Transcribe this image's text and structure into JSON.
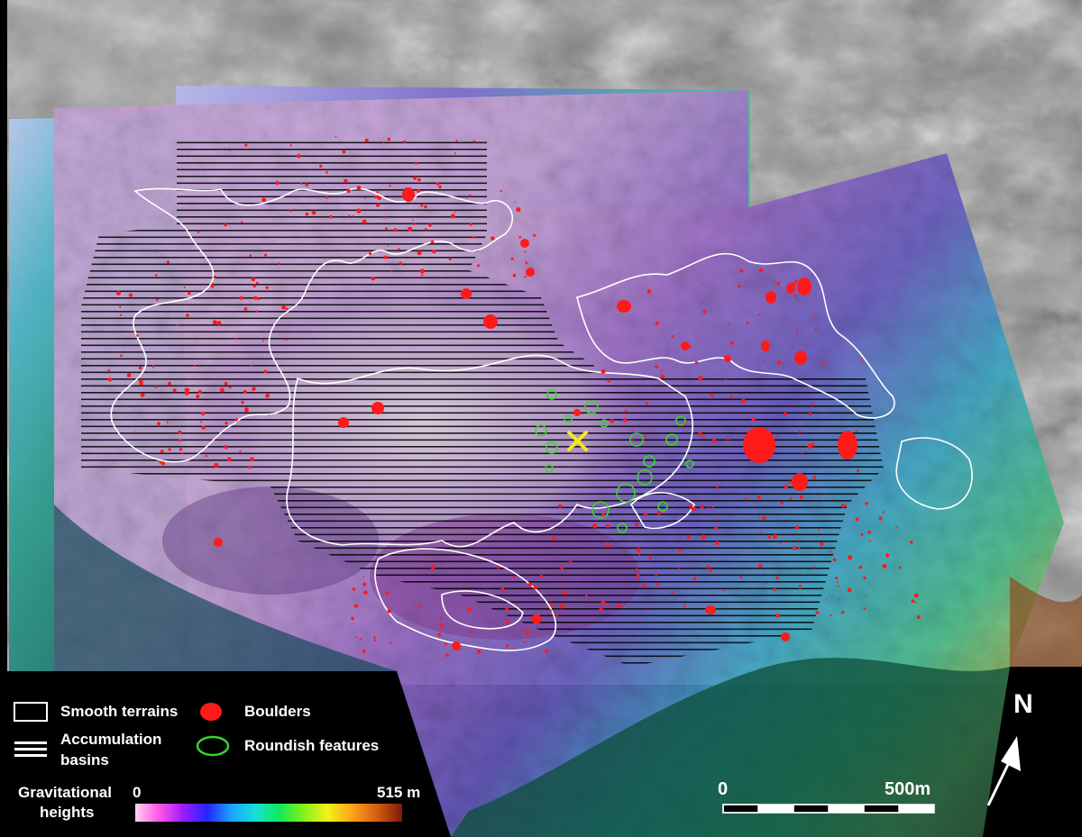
{
  "legend": {
    "smooth_terrains": "Smooth terrains",
    "accumulation_basins_line1": "Accumulation",
    "accumulation_basins_line2": "basins",
    "boulders": "Boulders",
    "roundish_features": "Roundish features",
    "gravitational_heights_line1": "Gravitational",
    "gravitational_heights_line2": "heights",
    "colorbar_min": "0",
    "colorbar_max": "515 m",
    "colorbar_colors": [
      "#ffd1f0",
      "#ff55e6",
      "#9b1bff",
      "#2424ff",
      "#1aa4ff",
      "#14e0d8",
      "#13e85a",
      "#80f21a",
      "#f2f21a",
      "#ff9c1a",
      "#d15a12",
      "#7a1a0a"
    ]
  },
  "scale_bar": {
    "start_label": "0",
    "end_label": "500m"
  },
  "north_arrow": {
    "label": "N"
  },
  "colors": {
    "smooth_terrain_outline": "#ffffff",
    "boulder": "#ff1a1a",
    "roundish_feature": "#38d62a",
    "marker_cross": "#f5e81b",
    "hatch_line": "#000000"
  },
  "icons": {
    "landing_site_marker": "x-marker-icon",
    "north": "north-arrow-icon"
  }
}
